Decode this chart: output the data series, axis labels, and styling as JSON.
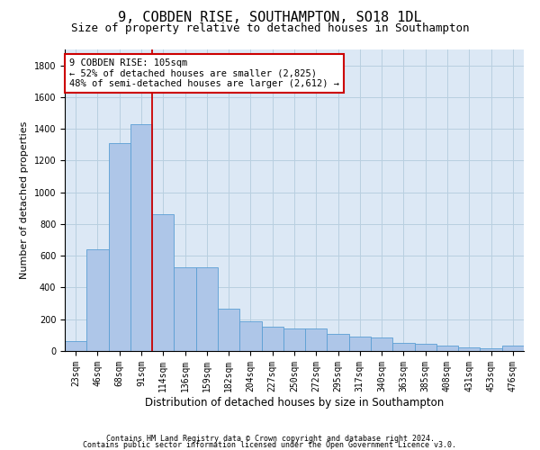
{
  "title1": "9, COBDEN RISE, SOUTHAMPTON, SO18 1DL",
  "title2": "Size of property relative to detached houses in Southampton",
  "xlabel": "Distribution of detached houses by size in Southampton",
  "ylabel": "Number of detached properties",
  "categories": [
    "23sqm",
    "46sqm",
    "68sqm",
    "91sqm",
    "114sqm",
    "136sqm",
    "159sqm",
    "182sqm",
    "204sqm",
    "227sqm",
    "250sqm",
    "272sqm",
    "295sqm",
    "317sqm",
    "340sqm",
    "363sqm",
    "385sqm",
    "408sqm",
    "431sqm",
    "453sqm",
    "476sqm"
  ],
  "values": [
    65,
    640,
    1310,
    1430,
    860,
    530,
    530,
    265,
    185,
    155,
    140,
    140,
    105,
    90,
    85,
    50,
    45,
    35,
    20,
    15,
    35
  ],
  "bar_color": "#aec6e8",
  "bar_edge_color": "#5a9fd4",
  "vline_color": "#cc0000",
  "vline_pos": 3.5,
  "annotation_text": "9 COBDEN RISE: 105sqm\n← 52% of detached houses are smaller (2,825)\n48% of semi-detached houses are larger (2,612) →",
  "annotation_box_color": "#ffffff",
  "annotation_box_edge": "#cc0000",
  "ylim": [
    0,
    1900
  ],
  "yticks": [
    0,
    200,
    400,
    600,
    800,
    1000,
    1200,
    1400,
    1600,
    1800
  ],
  "footer1": "Contains HM Land Registry data © Crown copyright and database right 2024.",
  "footer2": "Contains public sector information licensed under the Open Government Licence v3.0.",
  "plot_bg_color": "#dce8f5",
  "fig_bg_color": "#ffffff",
  "grid_color": "#b8cfe0",
  "title1_fontsize": 11,
  "title2_fontsize": 9,
  "ylabel_fontsize": 8,
  "xlabel_fontsize": 8.5,
  "tick_fontsize": 7,
  "footer_fontsize": 6,
  "annot_fontsize": 7.5
}
